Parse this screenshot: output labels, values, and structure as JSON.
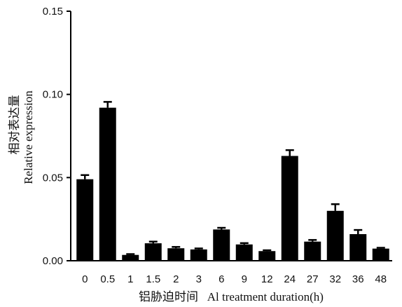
{
  "chart_data": {
    "type": "bar",
    "categories": [
      "0",
      "0.5",
      "1",
      "1.5",
      "2",
      "3",
      "6",
      "9",
      "12",
      "24",
      "27",
      "32",
      "36",
      "48"
    ],
    "values": [
      0.049,
      0.092,
      0.0035,
      0.0105,
      0.0075,
      0.0068,
      0.0188,
      0.0098,
      0.0058,
      0.063,
      0.0115,
      0.03,
      0.016,
      0.0073
    ],
    "errors": [
      0.0025,
      0.0035,
      0.0005,
      0.001,
      0.0008,
      0.0006,
      0.001,
      0.0008,
      0.0005,
      0.0035,
      0.001,
      0.004,
      0.0025,
      0.0005
    ],
    "yticks": [
      "0.00",
      "0.05",
      "0.10",
      "0.15"
    ],
    "ylim": [
      0,
      0.15
    ],
    "xlabel": "铝胁迫时间   Al treatment duration(h)",
    "ylabel_line1": "相对表达量",
    "ylabel_line2": "Relative expression",
    "title": "",
    "bar_color": "#000000",
    "grid": false
  }
}
